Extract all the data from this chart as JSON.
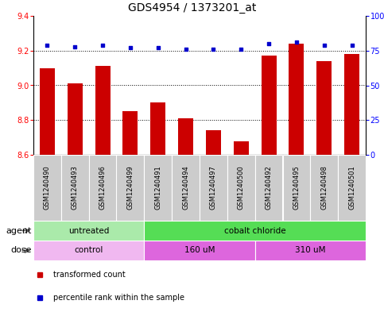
{
  "title": "GDS4954 / 1373201_at",
  "samples": [
    "GSM1240490",
    "GSM1240493",
    "GSM1240496",
    "GSM1240499",
    "GSM1240491",
    "GSM1240494",
    "GSM1240497",
    "GSM1240500",
    "GSM1240492",
    "GSM1240495",
    "GSM1240498",
    "GSM1240501"
  ],
  "bar_values": [
    9.1,
    9.01,
    9.11,
    8.85,
    8.9,
    8.81,
    8.74,
    8.68,
    9.17,
    9.24,
    9.14,
    9.18
  ],
  "scatter_values": [
    79,
    78,
    79,
    77,
    77,
    76,
    76,
    76,
    80,
    81,
    79,
    79
  ],
  "ylim_left": [
    8.6,
    9.4
  ],
  "ylim_right": [
    0,
    100
  ],
  "yticks_left": [
    8.6,
    8.8,
    9.0,
    9.2,
    9.4
  ],
  "yticks_right": [
    0,
    25,
    50,
    75,
    100
  ],
  "bar_color": "#cc0000",
  "scatter_color": "#0000cc",
  "agent_groups": [
    {
      "label": "untreated",
      "start": 0,
      "end": 4,
      "color": "#aaeaaa"
    },
    {
      "label": "cobalt chloride",
      "start": 4,
      "end": 12,
      "color": "#55dd55"
    }
  ],
  "dose_groups": [
    {
      "label": "control",
      "start": 0,
      "end": 4,
      "color": "#f0b8f0"
    },
    {
      "label": "160 uM",
      "start": 4,
      "end": 8,
      "color": "#dd66dd"
    },
    {
      "label": "310 uM",
      "start": 8,
      "end": 12,
      "color": "#dd66dd"
    }
  ],
  "legend_bar_label": "transformed count",
  "legend_scatter_label": "percentile rank within the sample",
  "agent_label": "agent",
  "dose_label": "dose",
  "title_fontsize": 10,
  "tick_fontsize": 7,
  "sample_fontsize": 6,
  "label_fontsize": 7.5,
  "row_label_fontsize": 8
}
